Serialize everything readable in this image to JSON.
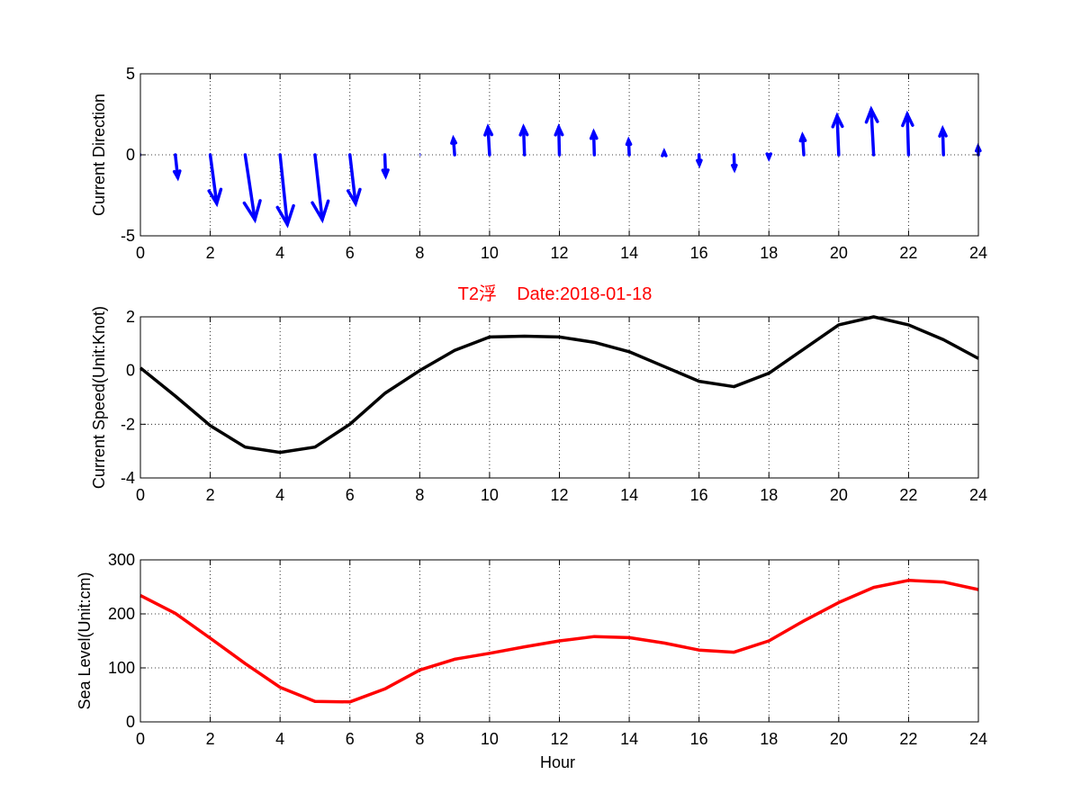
{
  "chart_data": [
    {
      "type": "quiver",
      "ylabel": "Current Direction",
      "xlim": [
        0,
        24
      ],
      "ylim": [
        -5,
        5
      ],
      "xticks": [
        0,
        2,
        4,
        6,
        8,
        10,
        12,
        14,
        16,
        18,
        20,
        22,
        24
      ],
      "yticks": [
        -5,
        0,
        5
      ],
      "grid": true,
      "color": "#0000ff",
      "vectors": [
        {
          "x": 0,
          "u": 0.0,
          "v": 0.0
        },
        {
          "x": 1,
          "u": 0.15,
          "v": -1.4
        },
        {
          "x": 2,
          "u": 0.4,
          "v": -3.0
        },
        {
          "x": 3,
          "u": 0.6,
          "v": -4.0
        },
        {
          "x": 4,
          "u": 0.45,
          "v": -4.3
        },
        {
          "x": 5,
          "u": 0.45,
          "v": -4.0
        },
        {
          "x": 6,
          "u": 0.35,
          "v": -3.0
        },
        {
          "x": 7,
          "u": 0.05,
          "v": -1.3
        },
        {
          "x": 8,
          "u": 0.0,
          "v": 0.0
        },
        {
          "x": 9,
          "u": -0.08,
          "v": 1.0
        },
        {
          "x": 10,
          "u": -0.1,
          "v": 1.7
        },
        {
          "x": 11,
          "u": -0.06,
          "v": 1.7
        },
        {
          "x": 12,
          "u": -0.04,
          "v": 1.7
        },
        {
          "x": 13,
          "u": -0.04,
          "v": 1.4
        },
        {
          "x": 14,
          "u": -0.04,
          "v": 0.9
        },
        {
          "x": 15,
          "u": 0.0,
          "v": 0.2
        },
        {
          "x": 16,
          "u": 0.02,
          "v": -0.6
        },
        {
          "x": 17,
          "u": 0.03,
          "v": -0.9
        },
        {
          "x": 18,
          "u": 0.0,
          "v": -0.2
        },
        {
          "x": 19,
          "u": -0.08,
          "v": 1.2
        },
        {
          "x": 20,
          "u": -0.1,
          "v": 2.4
        },
        {
          "x": 21,
          "u": -0.15,
          "v": 2.8
        },
        {
          "x": 22,
          "u": -0.08,
          "v": 2.5
        },
        {
          "x": 23,
          "u": -0.05,
          "v": 1.6
        },
        {
          "x": 24,
          "u": -0.02,
          "v": 0.5
        }
      ]
    },
    {
      "type": "line",
      "title": "T2浮    Date:2018-01-18",
      "ylabel": "Current Speed(Unit:Knot)",
      "xlim": [
        0,
        24
      ],
      "ylim": [
        -4,
        2
      ],
      "xticks": [
        0,
        2,
        4,
        6,
        8,
        10,
        12,
        14,
        16,
        18,
        20,
        22,
        24
      ],
      "yticks": [
        -4,
        -2,
        0,
        2
      ],
      "grid": true,
      "color": "#000000",
      "x": [
        0,
        1,
        2,
        3,
        4,
        5,
        6,
        7,
        8,
        9,
        10,
        11,
        12,
        13,
        14,
        15,
        16,
        17,
        18,
        19,
        20,
        21,
        22,
        23,
        24
      ],
      "y": [
        0.1,
        -0.95,
        -2.05,
        -2.85,
        -3.05,
        -2.85,
        -2.0,
        -0.85,
        0.0,
        0.75,
        1.25,
        1.28,
        1.25,
        1.05,
        0.7,
        0.15,
        -0.4,
        -0.6,
        -0.1,
        0.8,
        1.7,
        2.0,
        1.7,
        1.15,
        0.45
      ]
    },
    {
      "type": "line",
      "xlabel": "Hour",
      "ylabel": "Sea Level(Unit:cm)",
      "xlim": [
        0,
        24
      ],
      "ylim": [
        0,
        300
      ],
      "xticks": [
        0,
        2,
        4,
        6,
        8,
        10,
        12,
        14,
        16,
        18,
        20,
        22,
        24
      ],
      "yticks": [
        0,
        100,
        200,
        300
      ],
      "grid": true,
      "color": "#ff0000",
      "x": [
        0,
        1,
        2,
        3,
        4,
        5,
        6,
        7,
        8,
        9,
        10,
        11,
        12,
        13,
        14,
        15,
        16,
        17,
        18,
        19,
        20,
        21,
        22,
        23,
        24
      ],
      "y": [
        234,
        201,
        155,
        108,
        64,
        38,
        37,
        61,
        96,
        116,
        127,
        139,
        150,
        158,
        156,
        146,
        133,
        129,
        150,
        187,
        221,
        249,
        262,
        259,
        245
      ]
    }
  ]
}
